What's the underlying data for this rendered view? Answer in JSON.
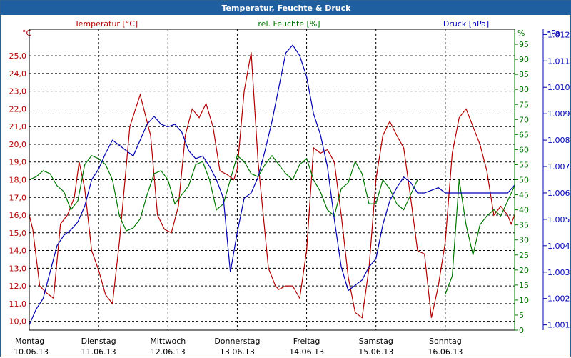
{
  "window": {
    "title": "Temperatur, Feuchte & Druck"
  },
  "colors": {
    "temperature": "#b00000",
    "humidity": "#007700",
    "pressure": "#0000b0",
    "grid": "#000000",
    "title_bg": "#1f5fa0"
  },
  "chart_data": {
    "type": "line",
    "title": "Temperatur, Feuchte & Druck",
    "legend": {
      "temperature": "Temperatur [°C]",
      "humidity": "rel. Feuchte [%]",
      "pressure": "Druck [hPa]"
    },
    "units": {
      "temperature": "°C",
      "humidity": "%",
      "pressure": "hPa"
    },
    "axes": {
      "temperature": {
        "min": 9.5,
        "max": 26.5,
        "ticks": [
          "10,0",
          "11,0",
          "12,0",
          "13,0",
          "14,0",
          "15,0",
          "16,0",
          "17,0",
          "18,0",
          "19,0",
          "20,0",
          "21,0",
          "22,0",
          "23,0",
          "24,0",
          "25,0"
        ]
      },
      "humidity": {
        "min": 0,
        "max": 100,
        "ticks": [
          "0",
          "5",
          "10",
          "15",
          "20",
          "25",
          "30",
          "35",
          "40",
          "45",
          "50",
          "55",
          "60",
          "65",
          "70",
          "75",
          "80",
          "85",
          "90",
          "95"
        ]
      },
      "pressure": {
        "min": 1000.8,
        "max": 1012.2,
        "ticks": [
          "1.001",
          "1.002",
          "1.003",
          "1.004",
          "1.005",
          "1.006",
          "1.007",
          "1.008",
          "1.009",
          "1.010",
          "1.011",
          "1.012"
        ]
      }
    },
    "x_days": [
      {
        "day": "Montag",
        "date": "10.06.13"
      },
      {
        "day": "Dienstag",
        "date": "11.06.13"
      },
      {
        "day": "Mittwoch",
        "date": "12.06.13"
      },
      {
        "day": "Donnerstag",
        "date": "13.06.13"
      },
      {
        "day": "Freitag",
        "date": "14.06.13"
      },
      {
        "day": "Samstag",
        "date": "15.06.13"
      },
      {
        "day": "Sonntag",
        "date": "16.06.13"
      }
    ],
    "x_range_days": [
      0,
      7
    ],
    "series": [
      {
        "name": "Temperatur [°C]",
        "axis": "temperature",
        "t": [
          0,
          0.05,
          0.15,
          0.25,
          0.35,
          0.45,
          0.55,
          0.65,
          0.72,
          0.8,
          0.9,
          1,
          1.1,
          1.2,
          1.3,
          1.45,
          1.6,
          1.75,
          1.85,
          1.95,
          2.05,
          2.15,
          2.25,
          2.35,
          2.45,
          2.55,
          2.65,
          2.75,
          2.85,
          2.95,
          3,
          3.1,
          3.2,
          3.3,
          3.45,
          3.55,
          3.6,
          3.7,
          3.8,
          3.9,
          4,
          4.1,
          4.2,
          4.3,
          4.4,
          4.5,
          4.6,
          4.7,
          4.8,
          4.9,
          5,
          5.1,
          5.2,
          5.3,
          5.4,
          5.5,
          5.6,
          5.7,
          5.8,
          5.9,
          6,
          6.05,
          6.1,
          6.2,
          6.3,
          6.4,
          6.5,
          6.6,
          6.7,
          6.8,
          6.9,
          6.95,
          7
        ],
        "v": [
          16.0,
          15.2,
          12.0,
          11.6,
          11.3,
          15.5,
          16.0,
          17.0,
          19.0,
          17.5,
          14.0,
          12.9,
          11.5,
          11.0,
          14.5,
          21.0,
          22.8,
          20.5,
          16.0,
          15.2,
          15.0,
          16.5,
          20.5,
          22.0,
          21.5,
          22.3,
          21.0,
          18.5,
          18.3,
          18.0,
          18.6,
          23.0,
          25.2,
          19.0,
          13.0,
          12.0,
          11.8,
          12.0,
          12.0,
          11.3,
          14.0,
          19.8,
          19.5,
          19.7,
          19.0,
          16.0,
          12.5,
          10.5,
          10.2,
          13.0,
          18.0,
          20.5,
          21.3,
          20.5,
          19.8,
          17.0,
          14.0,
          13.8,
          10.2,
          12.0,
          14.5,
          17.0,
          19.5,
          21.5,
          22.0,
          21.0,
          20.0,
          18.5,
          16.0,
          16.5,
          16.0,
          15.5,
          16.0
        ]
      },
      {
        "name": "rel. Feuchte [%]",
        "axis": "humidity",
        "t": [
          0,
          0.1,
          0.2,
          0.3,
          0.4,
          0.5,
          0.6,
          0.7,
          0.8,
          0.9,
          1,
          1.1,
          1.2,
          1.3,
          1.4,
          1.5,
          1.6,
          1.7,
          1.8,
          1.9,
          2,
          2.1,
          2.2,
          2.3,
          2.4,
          2.5,
          2.6,
          2.7,
          2.8,
          2.9,
          3,
          3.1,
          3.2,
          3.3,
          3.4,
          3.5,
          3.6,
          3.7,
          3.8,
          3.9,
          4,
          4.1,
          4.2,
          4.3,
          4.4,
          4.5,
          4.6,
          4.7,
          4.8,
          4.9,
          5,
          5.1,
          5.2,
          5.3,
          5.4,
          5.5,
          5.6,
          5.7,
          5.8,
          5.9,
          6,
          6.1,
          6.2,
          6.3,
          6.4,
          6.5,
          6.6,
          6.7,
          6.8,
          6.9,
          7
        ],
        "v": [
          50,
          51,
          53,
          52,
          48,
          46,
          40,
          43,
          55,
          58,
          57,
          55,
          50,
          38,
          33,
          34,
          37,
          45,
          52,
          53,
          50,
          42,
          45,
          48,
          55,
          56,
          50,
          40,
          42,
          50,
          58,
          56,
          52,
          51,
          55,
          58,
          55,
          52,
          50,
          55,
          57,
          50,
          46,
          40,
          38,
          47,
          49,
          56,
          52,
          42,
          42,
          50,
          47,
          42,
          40,
          45,
          50,
          null,
          null,
          null,
          12,
          18,
          50,
          35,
          25,
          35,
          38,
          40,
          38,
          43,
          48
        ]
      },
      {
        "name": "Druck [hPa]",
        "axis": "pressure",
        "t": [
          0,
          0.1,
          0.2,
          0.3,
          0.4,
          0.5,
          0.6,
          0.7,
          0.8,
          0.9,
          1,
          1.1,
          1.2,
          1.3,
          1.4,
          1.5,
          1.6,
          1.7,
          1.8,
          1.9,
          2,
          2.1,
          2.2,
          2.3,
          2.4,
          2.5,
          2.6,
          2.7,
          2.8,
          2.9,
          3,
          3.1,
          3.2,
          3.3,
          3.4,
          3.5,
          3.6,
          3.7,
          3.8,
          3.9,
          4,
          4.1,
          4.2,
          4.3,
          4.4,
          4.5,
          4.6,
          4.7,
          4.8,
          4.9,
          5,
          5.1,
          5.2,
          5.3,
          5.4,
          5.5,
          5.6,
          5.7,
          5.8,
          5.9,
          6,
          6.1,
          6.2,
          6.3,
          6.4,
          6.5,
          6.6,
          6.7,
          6.8,
          6.9,
          7
        ],
        "v": [
          1001.0,
          1001.6,
          1002.0,
          1003.0,
          1004.0,
          1004.4,
          1004.6,
          1004.9,
          1005.5,
          1006.5,
          1006.9,
          1007.5,
          1008.0,
          1007.8,
          1007.6,
          1007.4,
          1008.0,
          1008.6,
          1008.9,
          1008.6,
          1008.5,
          1008.6,
          1008.3,
          1007.6,
          1007.3,
          1007.4,
          1007.0,
          1006.5,
          1005.8,
          1003.0,
          1004.5,
          1005.8,
          1006.0,
          1006.6,
          1007.6,
          1008.7,
          1010.0,
          1011.3,
          1011.6,
          1011.2,
          1010.4,
          1009.0,
          1008.2,
          1007.0,
          1005.0,
          1003.2,
          1002.3,
          1002.5,
          1002.7,
          1003.2,
          1003.5,
          1004.8,
          1005.7,
          1006.2,
          1006.6,
          1006.4,
          1006.0,
          1006.0,
          1006.1,
          1006.2,
          1006.0,
          1006.0,
          1006.0,
          1006.0,
          1006.0,
          1006.0,
          1006.0,
          1006.0,
          1006.0,
          1006.0,
          1006.3
        ]
      }
    ]
  }
}
